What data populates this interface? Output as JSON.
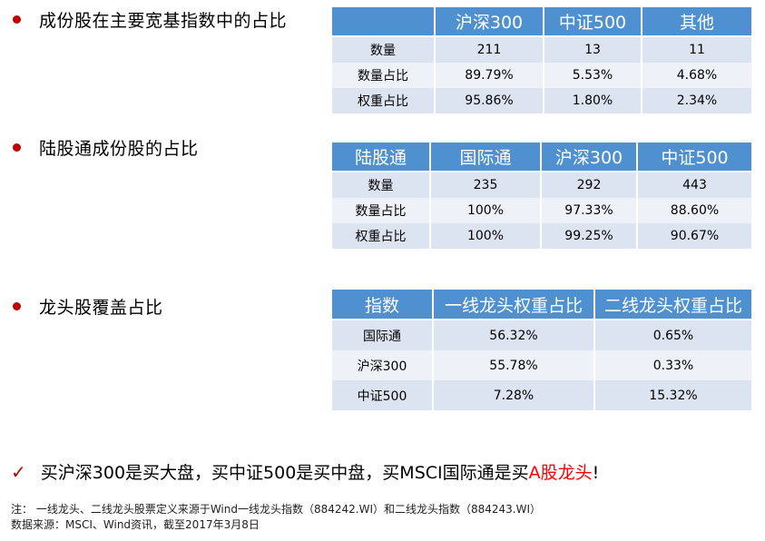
{
  "section1": {
    "title": "成份股在主要宽基指数中的占比",
    "headers": [
      "",
      "沪深300",
      "中证500",
      "其他"
    ],
    "rows": [
      [
        "数量",
        "211",
        "13",
        "11"
      ],
      [
        "数量占比",
        "89.79%",
        "5.53%",
        "4.68%"
      ],
      [
        "权重占比",
        "95.86%",
        "1.80%",
        "2.34%"
      ]
    ]
  },
  "section2": {
    "title": "陆股通成份股的占比",
    "headers": [
      "陆股通",
      "国际通",
      "沪深300",
      "中证500"
    ],
    "rows": [
      [
        "数量",
        "235",
        "292",
        "443"
      ],
      [
        "数量占比",
        "100%",
        "97.33%",
        "88.60%"
      ],
      [
        "权重占比",
        "100%",
        "99.25%",
        "90.67%"
      ]
    ]
  },
  "section3": {
    "title": "龙头股覆盖占比",
    "headers": [
      "指数",
      "一线龙头权重占比",
      "二线龙头权重占比"
    ],
    "rows": [
      [
        "国际通",
        "56.32%",
        "0.65%"
      ],
      [
        "沪深300",
        "55.78%",
        "0.33%"
      ],
      [
        "中证500",
        "7.28%",
        "15.32%"
      ]
    ]
  },
  "conclusion": {
    "check": "✓",
    "text_before": "买沪深300是买大盘，买中证500是买中盘，买MSCI国际通是买",
    "highlight": "A股龙头",
    "text_after": "!"
  },
  "notes": {
    "line1": "注：  一线龙头、二线龙头股票定义来源于Wind一线龙头指数（884242.WI）和二线龙头指数（884243.WI）",
    "line2": "数据来源：MSCI、Wind资讯，截至2017年3月8日"
  },
  "colors": {
    "header": "#4f90d0",
    "bullet": "#c00000",
    "highlight": "#ff0000"
  }
}
